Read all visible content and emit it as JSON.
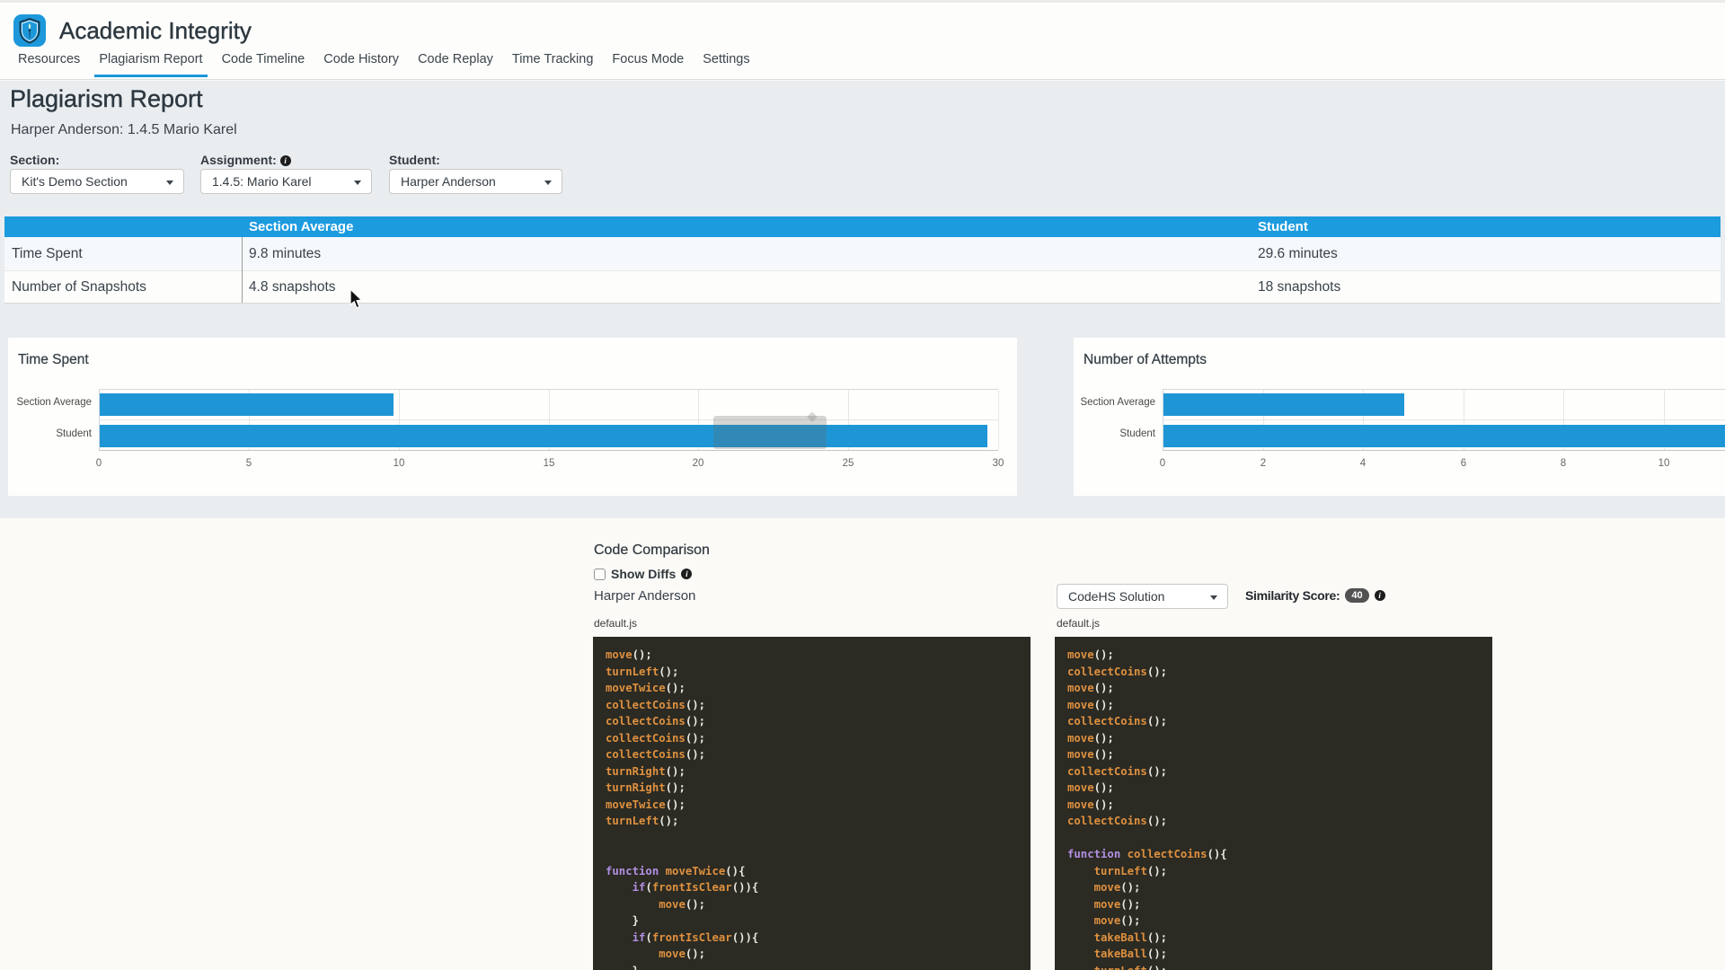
{
  "app": {
    "title": "Academic Integrity"
  },
  "nav": {
    "items": [
      {
        "label": "Resources",
        "active": false
      },
      {
        "label": "Plagiarism Report",
        "active": true
      },
      {
        "label": "Code Timeline",
        "active": false
      },
      {
        "label": "Code History",
        "active": false
      },
      {
        "label": "Code Replay",
        "active": false
      },
      {
        "label": "Time Tracking",
        "active": false
      },
      {
        "label": "Focus Mode",
        "active": false
      },
      {
        "label": "Settings",
        "active": false
      }
    ]
  },
  "page": {
    "title": "Plagiarism Report",
    "subtitle": "Harper Anderson: 1.4.5 Mario Karel"
  },
  "filters": {
    "section": {
      "label": "Section:",
      "value": "Kit's Demo Section"
    },
    "assignment": {
      "label": "Assignment:",
      "value": "1.4.5: Mario Karel",
      "info_icon": "i"
    },
    "student": {
      "label": "Student:",
      "value": "Harper Anderson"
    }
  },
  "summary_table": {
    "columns": [
      "",
      "Section Average",
      "Student"
    ],
    "rows": [
      {
        "label": "Time Spent",
        "section_average": "9.8 minutes",
        "student": "29.6 minutes"
      },
      {
        "label": "Number of Snapshots",
        "section_average": "4.8 snapshots",
        "student": "18 snapshots"
      }
    ]
  },
  "chart_data": [
    {
      "type": "bar",
      "orientation": "horizontal",
      "title": "Time Spent",
      "categories": [
        "Section Average",
        "Student"
      ],
      "values": [
        9.8,
        29.6
      ],
      "xlabel": "",
      "ylabel": "",
      "xlim": [
        0,
        30
      ],
      "ticks": [
        0,
        5,
        10,
        15,
        20,
        25,
        30
      ],
      "grid": true,
      "legend": false,
      "bar_color": "#1e96d6",
      "tooltip_visible": true
    },
    {
      "type": "bar",
      "orientation": "horizontal",
      "title": "Number of Attempts",
      "categories": [
        "Section Average",
        "Student"
      ],
      "values": [
        4.8,
        18
      ],
      "xlabel": "",
      "ylabel": "",
      "xlim": [
        0,
        10
      ],
      "ticks": [
        0,
        2,
        4,
        6,
        8,
        10
      ],
      "grid": true,
      "legend": false,
      "bar_color": "#1e96d6",
      "note": "student bar extends past the visible right edge"
    }
  ],
  "code_comparison": {
    "title": "Code Comparison",
    "show_diffs_label": "Show Diffs",
    "show_diffs_info_icon": "i",
    "show_diffs_checked": false,
    "left_author": "Harper Anderson",
    "right_source": "CodeHS Solution",
    "similarity_label": "Similarity Score:",
    "similarity_score": "40",
    "similarity_info_icon": "i",
    "left_filename": "default.js",
    "right_filename": "default.js",
    "left_code": [
      "move();",
      "turnLeft();",
      "moveTwice();",
      "collectCoins();",
      "collectCoins();",
      "collectCoins();",
      "collectCoins();",
      "turnRight();",
      "turnRight();",
      "moveTwice();",
      "turnLeft();",
      "",
      "",
      "function moveTwice(){",
      "    if(frontIsClear()){",
      "        move();",
      "    }",
      "    if(frontIsClear()){",
      "        move();",
      "    }"
    ],
    "right_code": [
      "move();",
      "collectCoins();",
      "move();",
      "move();",
      "collectCoins();",
      "move();",
      "move();",
      "collectCoins();",
      "move();",
      "move();",
      "collectCoins();",
      "",
      "function collectCoins(){",
      "    turnLeft();",
      "    move();",
      "    move();",
      "    move();",
      "    takeBall();",
      "    takeBall();",
      "    turnLeft();"
    ]
  },
  "colors": {
    "brand_blue": "#1d98da",
    "table_header_blue": "#1d9bdf",
    "bar_blue": "#1e96d6",
    "page_bg": "#fbfaf7",
    "band_bg": "#e9edf0",
    "code_bg": "#2b2a23",
    "code_fn": "#df913f",
    "code_kw": "#b18fe2",
    "code_punct": "#eae8e1"
  }
}
